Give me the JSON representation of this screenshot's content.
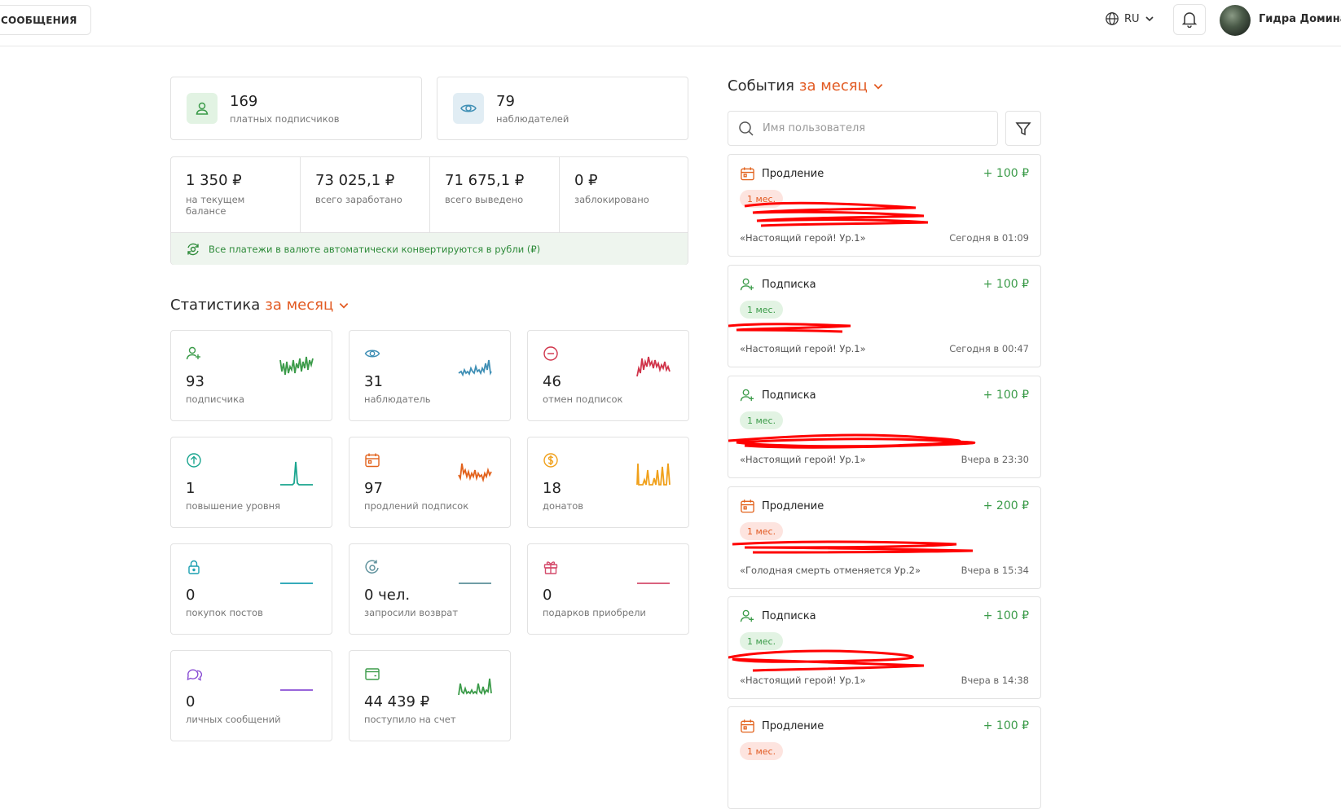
{
  "header": {
    "messages_label": "СООБЩЕНИЯ",
    "language": "RU",
    "username": "Гидра Доминат"
  },
  "summary": {
    "subscribers": {
      "value": "169",
      "label": "платных подписчиков"
    },
    "watchers": {
      "value": "79",
      "label": "наблюдателей"
    }
  },
  "balance": {
    "cells": [
      {
        "value": "1 350 ₽",
        "label_line1": "на текущем",
        "label_line2": "балансе"
      },
      {
        "value": "73 025,1 ₽",
        "label_line1": "всего заработано",
        "label_line2": ""
      },
      {
        "value": "71 675,1 ₽",
        "label_line1": "всего выведено",
        "label_line2": ""
      },
      {
        "value": "0 ₽",
        "label_line1": "заблокировано",
        "label_line2": ""
      }
    ],
    "notice": "Все платежи в валюте автоматически конвертируются в рубли (₽)"
  },
  "stats": {
    "title": "Статистика",
    "period": "за месяц",
    "items": [
      {
        "value": "93",
        "label": "подписчика",
        "icon": "user-plus-icon",
        "color": "#3b9b49"
      },
      {
        "value": "31",
        "label": "наблюдатель",
        "icon": "eye-icon",
        "color": "#3f8fb5"
      },
      {
        "value": "46",
        "label": "отмен подписок",
        "icon": "minus-circle-icon",
        "color": "#d0344a"
      },
      {
        "value": "1",
        "label": "повышение уровня",
        "icon": "arrow-up-circle-icon",
        "color": "#1aa58f"
      },
      {
        "value": "97",
        "label": "продлений подписок",
        "icon": "calendar-icon",
        "color": "#e2621c"
      },
      {
        "value": "18",
        "label": "донатов",
        "icon": "coin-icon",
        "color": "#f0a01a"
      },
      {
        "value": "0",
        "label": "покупок постов",
        "icon": "lock-icon",
        "color": "#1a9fb0"
      },
      {
        "value": "0 чел.",
        "label": "запросили возврат",
        "icon": "refund-icon",
        "color": "#5b8f9a"
      },
      {
        "value": "0",
        "label": "подарков приобрели",
        "icon": "gift-icon",
        "color": "#d44b6b"
      },
      {
        "value": "0",
        "label": "личных сообщений",
        "icon": "chat-icon",
        "color": "#8a4fd4"
      },
      {
        "value": "44 439 ₽",
        "label": "поступило на счет",
        "icon": "wallet-icon",
        "color": "#3b9b49"
      }
    ]
  },
  "events": {
    "title": "События",
    "period": "за месяц",
    "search_placeholder": "Имя пользователя",
    "items": [
      {
        "type": "Продление",
        "kind": "renewal",
        "amount": "+ 100 ₽",
        "badge": "1 мес.",
        "title": "«Настоящий герой! Ур.1»",
        "time": "Сегодня в 01:09"
      },
      {
        "type": "Подписка",
        "kind": "subscription",
        "amount": "+ 100 ₽",
        "badge": "1 мес.",
        "title": "«Настоящий герой! Ур.1»",
        "time": "Сегодня в 00:47"
      },
      {
        "type": "Подписка",
        "kind": "subscription",
        "amount": "+ 100 ₽",
        "badge": "1 мес.",
        "title": "«Настоящий герой! Ур.1»",
        "time": "Вчера в 23:30"
      },
      {
        "type": "Продление",
        "kind": "renewal",
        "amount": "+ 200 ₽",
        "badge": "1 мес.",
        "title": "«Голодная смерть отменяется Ур.2»",
        "time": "Вчера в 15:34"
      },
      {
        "type": "Подписка",
        "kind": "subscription",
        "amount": "+ 100 ₽",
        "badge": "1 мес.",
        "title": "«Настоящий герой! Ур.1»",
        "time": "Вчера в 14:38"
      },
      {
        "type": "Продление",
        "kind": "renewal",
        "amount": "+ 100 ₽",
        "badge": "1 мес.",
        "title": "",
        "time": ""
      }
    ]
  }
}
